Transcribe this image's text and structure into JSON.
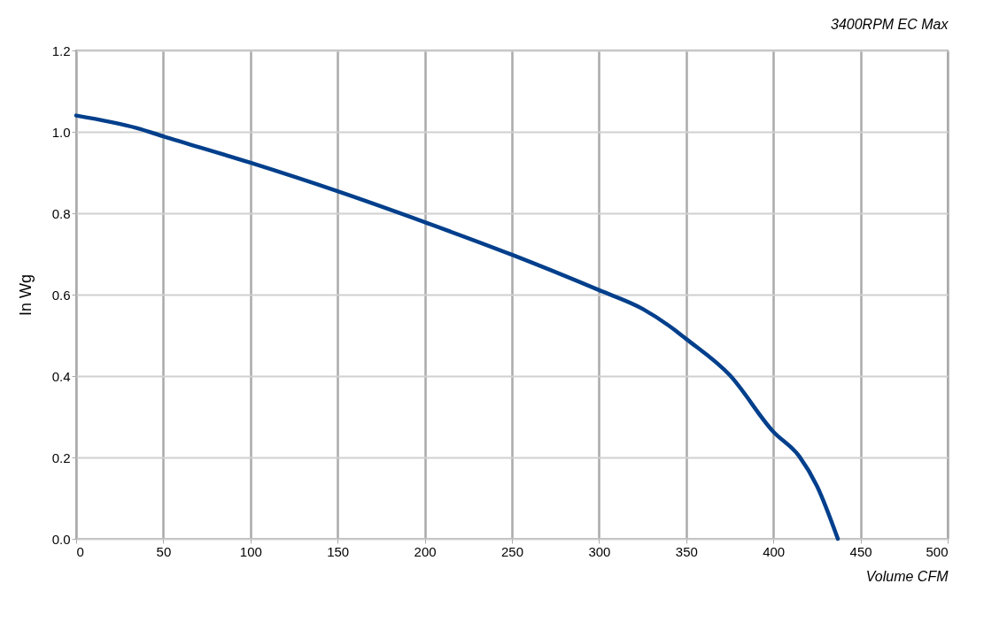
{
  "chart_data": {
    "type": "line",
    "title": "3400RPM EC Max",
    "xlabel": "Volume CFM",
    "ylabel": "In Wg",
    "x": [
      0,
      35,
      50,
      100,
      150,
      200,
      250,
      300,
      325,
      340,
      350,
      375,
      400,
      415,
      425,
      437
    ],
    "series": [
      {
        "color": "#003f8c",
        "values": [
          1.04,
          1.009,
          0.989,
          0.924,
          0.854,
          0.778,
          0.698,
          0.611,
          0.565,
          0.524,
          0.491,
          0.402,
          0.263,
          0.202,
          0.13,
          0.0
        ]
      }
    ],
    "xlim": [
      0,
      500
    ],
    "xticks": [
      0,
      50,
      100,
      150,
      200,
      250,
      300,
      350,
      400,
      450,
      500
    ],
    "ylim": [
      0,
      1.2
    ],
    "yticks": [
      {
        "value": 0,
        "label": "0.0"
      },
      {
        "value": 0.2,
        "label": "0.2"
      },
      {
        "value": 0.4,
        "label": "0.4"
      },
      {
        "value": 0.6,
        "label": "0.6"
      },
      {
        "value": 0.8,
        "label": "0.8"
      },
      {
        "value": 1.0,
        "label": "1.0"
      },
      {
        "value": 1.2,
        "label": "1.2"
      }
    ],
    "grid": true,
    "marker": "none",
    "line_style": "solid"
  }
}
